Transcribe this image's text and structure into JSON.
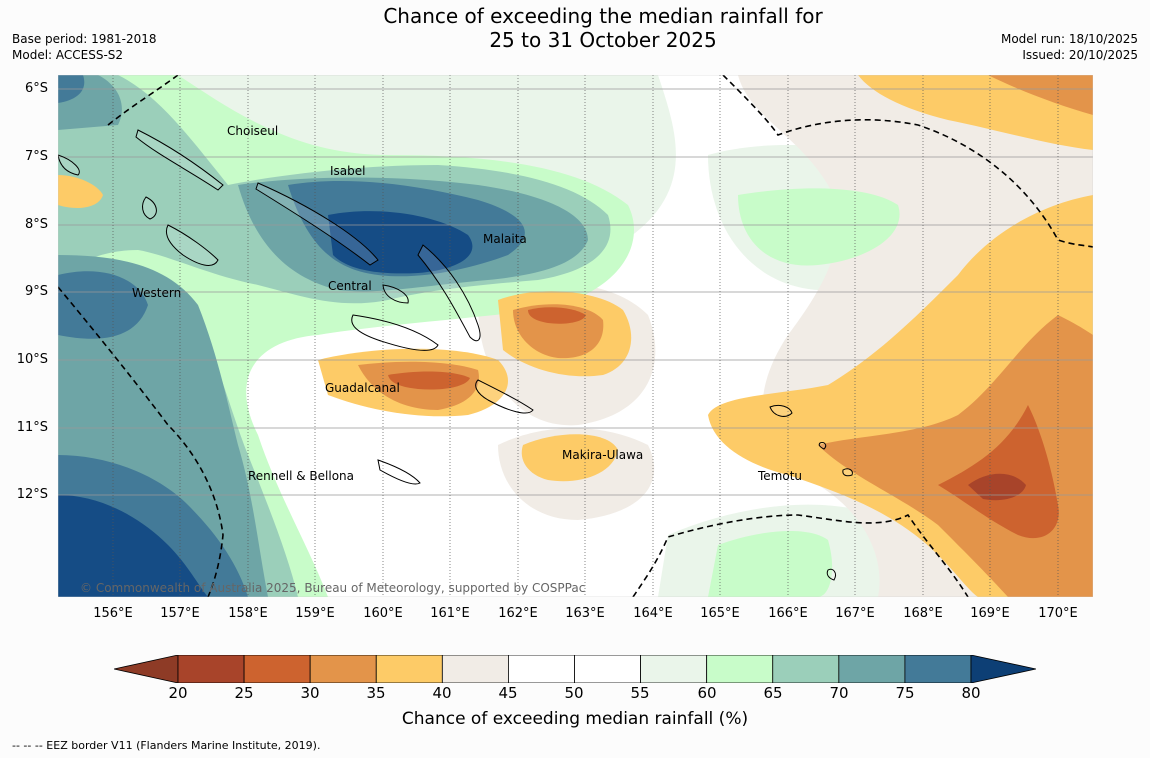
{
  "title": {
    "line1": "Chance of exceeding the median rainfall for",
    "line2": "25 to 31 October 2025"
  },
  "meta_left": {
    "base_period": "Base period: 1981-2018",
    "model": "Model: ACCESS-S2"
  },
  "meta_right": {
    "model_run": "Model run: 18/10/2025",
    "issued": "Issued: 20/10/2025"
  },
  "map": {
    "lat_labels": [
      "6°S",
      "7°S",
      "8°S",
      "9°S",
      "10°S",
      "11°S",
      "12°S"
    ],
    "lon_labels": [
      "156°E",
      "157°E",
      "158°E",
      "159°E",
      "160°E",
      "161°E",
      "162°E",
      "163°E",
      "164°E",
      "165°E",
      "166°E",
      "167°E",
      "168°E",
      "169°E",
      "170°E"
    ],
    "places": [
      "Choiseul",
      "Isabel",
      "Malaita",
      "Western",
      "Central",
      "Guadalcanal",
      "Makira-Ulawa",
      "Rennell & Bellona",
      "Temotu"
    ],
    "copyright": "© Commonwealth of Australia 2025, Bureau of Meteorology, supported by COSPPac"
  },
  "colorbar": {
    "ticks": [
      "20",
      "25",
      "30",
      "35",
      "40",
      "45",
      "50",
      "55",
      "60",
      "65",
      "70",
      "75",
      "80"
    ],
    "colors": [
      "#a8442a",
      "#cd632f",
      "#e3944a",
      "#fdcb67",
      "#f1ece6",
      "#ffffff",
      "#ffffff",
      "#eaf5ea",
      "#c8fcc9",
      "#9bcfba",
      "#6ea5a6",
      "#437a98",
      "#154c85"
    ],
    "low_color": "#8e3b26",
    "high_color": "#0d3f75",
    "title": "Chance of exceeding median rainfall (%)"
  },
  "footer": "--  --  -- EEZ border V11 (Flanders Marine Institute, 2019)."
}
